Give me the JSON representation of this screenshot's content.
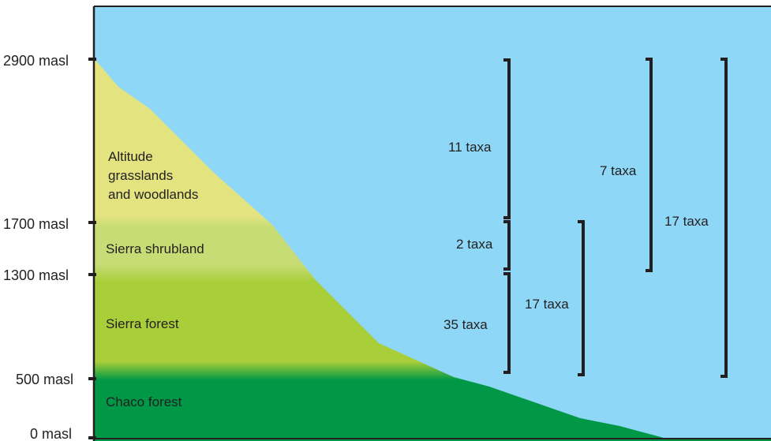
{
  "colors": {
    "sky": "#8fd7f7",
    "grassland": "#e3e480",
    "shrubland": "#c7dc75",
    "sierra_forest": "#a8ce39",
    "chaco_forest": "#009846",
    "bracket": "#231f20"
  },
  "altitudes": {
    "a2900": "2900 masl",
    "a1700": "1700 masl",
    "a1300": "1300 masl",
    "a500": "500 masl",
    "a0": "0 masl"
  },
  "zones": {
    "altitude_line1": "Altitude",
    "altitude_line2": "grasslands",
    "altitude_line3": "and woodlands",
    "shrubland": "Sierra shrubland",
    "sierra_forest": "Sierra forest",
    "chaco_forest": "Chaco forest"
  },
  "taxa": {
    "high_only": "11 taxa",
    "shrub_only": "2 taxa",
    "forest_only": "35 taxa",
    "forest_shrub": "17 taxa",
    "high_shrub": "7 taxa",
    "all_levels": "17 taxa"
  }
}
